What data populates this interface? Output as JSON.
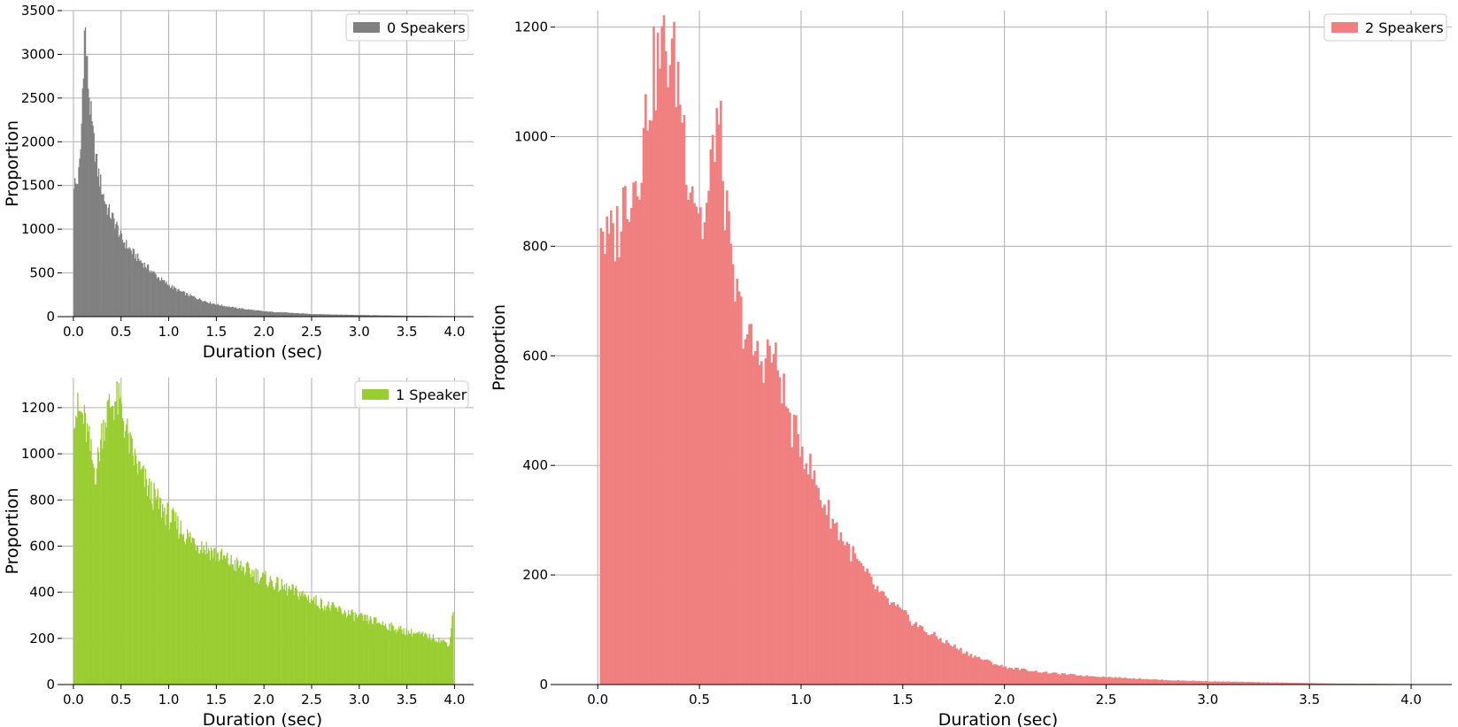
{
  "chart_data": [
    {
      "type": "bar",
      "xlabel": "Duration (sec)",
      "ylabel": "Proportion",
      "xlim": [
        -0.12,
        4.2
      ],
      "ylim": [
        0,
        3500
      ],
      "xticks": [
        0.0,
        0.5,
        1.0,
        1.5,
        2.0,
        2.5,
        3.0,
        3.5,
        4.0
      ],
      "xtick_labels": [
        "0.0",
        "0.5",
        "1.0",
        "1.5",
        "2.0",
        "2.5",
        "3.0",
        "3.5",
        "4.0"
      ],
      "yticks": [
        0,
        500,
        1000,
        1500,
        2000,
        2500,
        3000,
        3500
      ],
      "ytick_labels": [
        "0",
        "500",
        "1000",
        "1500",
        "2000",
        "2500",
        "3000",
        "3500"
      ],
      "grid": true,
      "legend_position": "top-right",
      "series": [
        {
          "name": "0 Speakers",
          "color": "#808080",
          "bin_width": 0.01,
          "profile_x": [
            0.0,
            0.03,
            0.06,
            0.08,
            0.1,
            0.11,
            0.12,
            0.13,
            0.14,
            0.16,
            0.18,
            0.2,
            0.22,
            0.25,
            0.28,
            0.3,
            0.35,
            0.4,
            0.45,
            0.5,
            0.6,
            0.7,
            0.8,
            0.9,
            1.0,
            1.1,
            1.2,
            1.3,
            1.4,
            1.5,
            1.7,
            2.0,
            2.5,
            3.0,
            3.5,
            4.0
          ],
          "profile_y": [
            1550,
            1500,
            1650,
            2000,
            2800,
            3100,
            3350,
            3150,
            2900,
            2600,
            2350,
            2100,
            1950,
            1700,
            1550,
            1450,
            1250,
            1150,
            1050,
            900,
            760,
            640,
            540,
            440,
            360,
            300,
            250,
            210,
            170,
            140,
            100,
            60,
            30,
            18,
            10,
            5
          ]
        }
      ]
    },
    {
      "type": "bar",
      "xlabel": "Duration (sec)",
      "ylabel": "Proportion",
      "xlim": [
        -0.12,
        4.2
      ],
      "ylim": [
        0,
        1330
      ],
      "xticks": [
        0.0,
        0.5,
        1.0,
        1.5,
        2.0,
        2.5,
        3.0,
        3.5,
        4.0
      ],
      "xtick_labels": [
        "0.0",
        "0.5",
        "1.0",
        "1.5",
        "2.0",
        "2.5",
        "3.0",
        "3.5",
        "4.0"
      ],
      "yticks": [
        0,
        200,
        400,
        600,
        800,
        1000,
        1200
      ],
      "ytick_labels": [
        "0",
        "200",
        "400",
        "600",
        "800",
        "1000",
        "1200"
      ],
      "grid": true,
      "legend_position": "top-right",
      "series": [
        {
          "name": "1 Speaker",
          "color": "#9acd32",
          "bin_width": 0.01,
          "profile_x": [
            0.0,
            0.05,
            0.1,
            0.15,
            0.2,
            0.23,
            0.26,
            0.3,
            0.35,
            0.4,
            0.45,
            0.5,
            0.55,
            0.6,
            0.7,
            0.8,
            0.9,
            1.0,
            1.2,
            1.4,
            1.6,
            1.8,
            2.0,
            2.2,
            2.4,
            2.6,
            2.8,
            3.0,
            3.2,
            3.4,
            3.6,
            3.8,
            3.95,
            3.98
          ],
          "profile_y": [
            1200,
            1180,
            1160,
            1080,
            960,
            920,
            980,
            1100,
            1180,
            1220,
            1230,
            1200,
            1110,
            1020,
            920,
            840,
            780,
            730,
            640,
            590,
            540,
            500,
            460,
            420,
            390,
            350,
            320,
            290,
            270,
            240,
            220,
            200,
            175,
            330
          ]
        }
      ]
    },
    {
      "type": "bar",
      "xlabel": "Duration (sec)",
      "ylabel": "Proportion",
      "xlim": [
        -0.21,
        4.2
      ],
      "ylim": [
        0,
        1230
      ],
      "xticks": [
        0.0,
        0.5,
        1.0,
        1.5,
        2.0,
        2.5,
        3.0,
        3.5,
        4.0
      ],
      "xtick_labels": [
        "0.0",
        "0.5",
        "1.0",
        "1.5",
        "2.0",
        "2.5",
        "3.0",
        "3.5",
        "4.0"
      ],
      "yticks": [
        0,
        200,
        400,
        600,
        800,
        1000,
        1200
      ],
      "ytick_labels": [
        "0",
        "200",
        "400",
        "600",
        "800",
        "1000",
        "1200"
      ],
      "grid": true,
      "legend_position": "top-right",
      "series": [
        {
          "name": "2 Speakers",
          "color": "#f08080",
          "bin_width": 0.01,
          "profile_x": [
            0.01,
            0.02,
            0.04,
            0.06,
            0.1,
            0.14,
            0.18,
            0.22,
            0.25,
            0.28,
            0.32,
            0.36,
            0.4,
            0.44,
            0.48,
            0.52,
            0.55,
            0.58,
            0.6,
            0.63,
            0.66,
            0.7,
            0.75,
            0.8,
            0.85,
            0.9,
            0.95,
            1.0,
            1.05,
            1.1,
            1.2,
            1.3,
            1.4,
            1.5,
            1.6,
            1.7,
            1.8,
            1.9,
            2.0,
            2.2,
            2.4,
            2.6,
            2.8,
            3.0,
            3.3,
            3.6,
            4.0
          ],
          "profile_y": [
            880,
            850,
            800,
            810,
            830,
            900,
            920,
            980,
            1080,
            1120,
            1160,
            1150,
            1100,
            960,
            900,
            830,
            900,
            1040,
            1010,
            870,
            740,
            680,
            620,
            590,
            610,
            560,
            470,
            440,
            390,
            340,
            270,
            210,
            160,
            130,
            100,
            80,
            60,
            45,
            32,
            22,
            16,
            12,
            8,
            6,
            4,
            2,
            1
          ]
        }
      ]
    }
  ]
}
